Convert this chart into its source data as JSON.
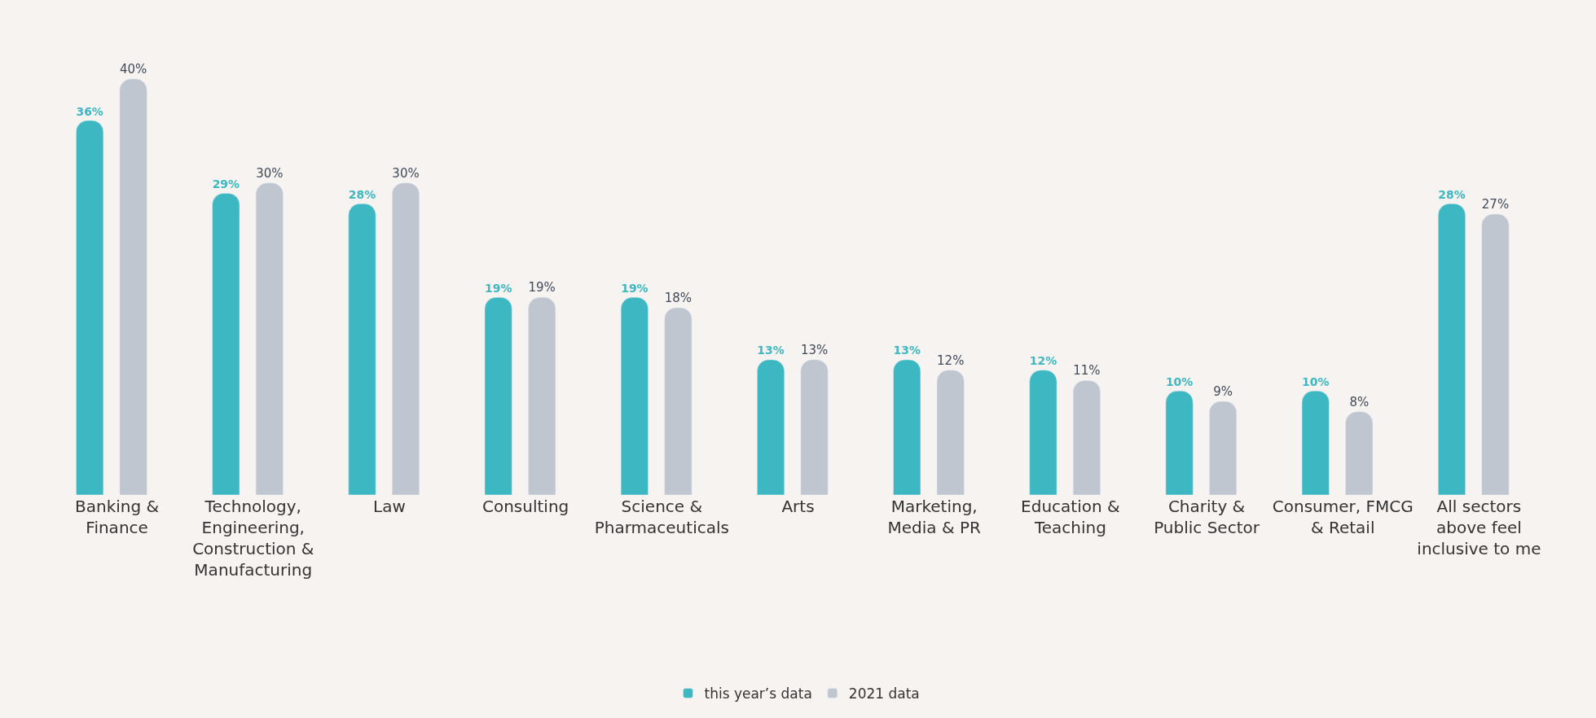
{
  "chart_data": {
    "type": "bar",
    "categories": [
      "Banking & Finance",
      "Technology, Engineering, Construction & Manufacturing",
      "Law",
      "Consulting",
      "Science & Pharmaceuticals",
      "Arts",
      "Marketing, Media & PR",
      "Education & Teaching",
      "Charity & Public Sector",
      "Consumer, FMCG & Retail",
      "All sectors above feel inclusive to me"
    ],
    "series": [
      {
        "name": "this year’s data",
        "color": "#3db8c2",
        "values": [
          36,
          29,
          28,
          19,
          19,
          13,
          13,
          12,
          10,
          10,
          28
        ],
        "value_labels": [
          "36%",
          "29%",
          "28%",
          "19%",
          "19%",
          "13%",
          "13%",
          "12%",
          "10%",
          "10%",
          "28%"
        ]
      },
      {
        "name": "2021 data",
        "color": "#bfc6cf",
        "values": [
          40,
          30,
          30,
          19,
          18,
          13,
          12,
          11,
          9,
          8,
          27
        ],
        "value_labels": [
          "40%",
          "30%",
          "30%",
          "19%",
          "18%",
          "13%",
          "12%",
          "11%",
          "9%",
          "8%",
          "27%"
        ]
      }
    ],
    "legend": "bottom",
    "grid": false
  }
}
